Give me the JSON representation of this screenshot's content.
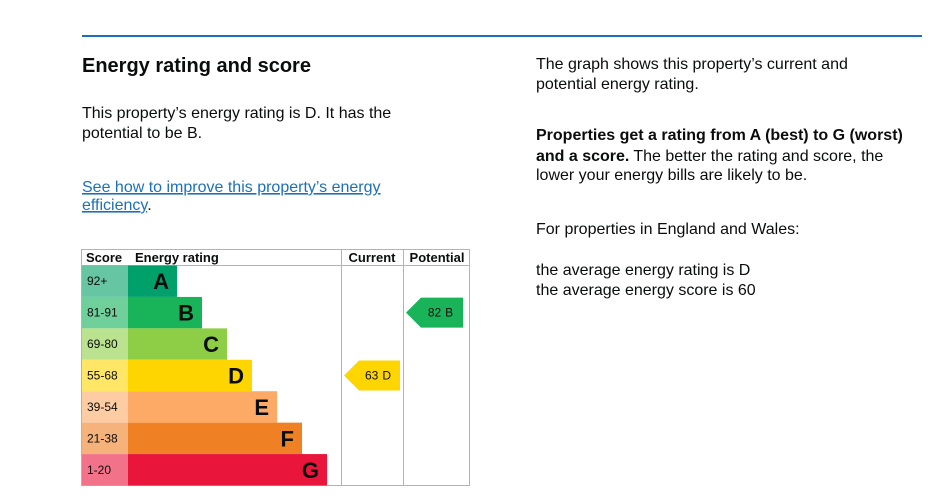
{
  "heading": "Energy rating and score",
  "summary": [
    "This property’s energy rating is D. It has the",
    "potential to be B."
  ],
  "link": [
    "See how to improve this property’s energy",
    "efficiency"
  ],
  "link_end": ".",
  "table": {
    "headers": [
      "Score",
      "Energy rating",
      "Current",
      "Potential"
    ],
    "bands": [
      {
        "score": "92+",
        "letter": "A",
        "color": "#00a06a",
        "score_color": "#66c6a3"
      },
      {
        "score": "81-91",
        "letter": "B",
        "color": "#19b459",
        "score_color": "#6fd09b"
      },
      {
        "score": "69-80",
        "letter": "C",
        "color": "#8dce46",
        "score_color": "#bbe28f"
      },
      {
        "score": "55-68",
        "letter": "D",
        "color": "#ffd500",
        "score_color": "#ffe666"
      },
      {
        "score": "39-54",
        "letter": "E",
        "color": "#fcaa65",
        "score_color": "#fdcca3"
      },
      {
        "score": "21-38",
        "letter": "F",
        "color": "#ef8023",
        "score_color": "#f5b37b"
      },
      {
        "score": "1-20",
        "letter": "G",
        "color": "#e9153b",
        "score_color": "#f27389"
      }
    ],
    "current": {
      "score": 63,
      "letter": "D"
    },
    "potential": {
      "score": 82,
      "letter": "B"
    }
  },
  "aside": {
    "intro": [
      "The graph shows this property’s current and",
      "potential energy rating."
    ],
    "rating_note_bold": [
      "Properties get a rating from A (best) to G (worst)",
      "and a score."
    ],
    "rating_note": [
      "The better the rating and score, the",
      "lower your energy bills are likely to be."
    ],
    "region": "For properties in England and Wales:",
    "averages": [
      "the average energy rating is D",
      "the average energy score is 60"
    ]
  }
}
